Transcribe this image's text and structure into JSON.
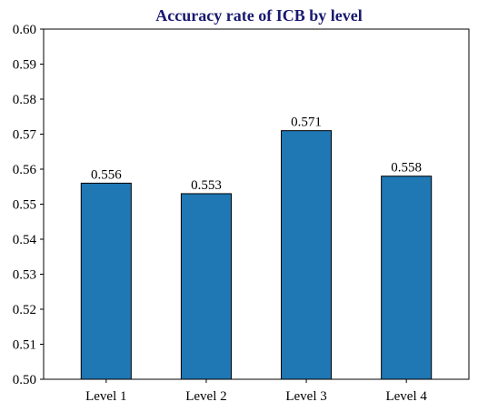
{
  "chart_data": {
    "type": "bar",
    "title": "Accuracy rate of ICB by level",
    "xlabel": "",
    "ylabel": "",
    "categories": [
      "Level 1",
      "Level 2",
      "Level 3",
      "Level 4"
    ],
    "values": [
      0.556,
      0.553,
      0.571,
      0.558
    ],
    "value_labels": [
      "0.556",
      "0.553",
      "0.571",
      "0.558"
    ],
    "ylim": [
      0.5,
      0.6
    ],
    "yticks": [
      "0.50",
      "0.51",
      "0.52",
      "0.53",
      "0.54",
      "0.55",
      "0.56",
      "0.57",
      "0.58",
      "0.59",
      "0.60"
    ],
    "grid": false,
    "colors": {
      "bar": "#1f77b4",
      "bar_edge": "#000000",
      "title": "#191970"
    }
  }
}
